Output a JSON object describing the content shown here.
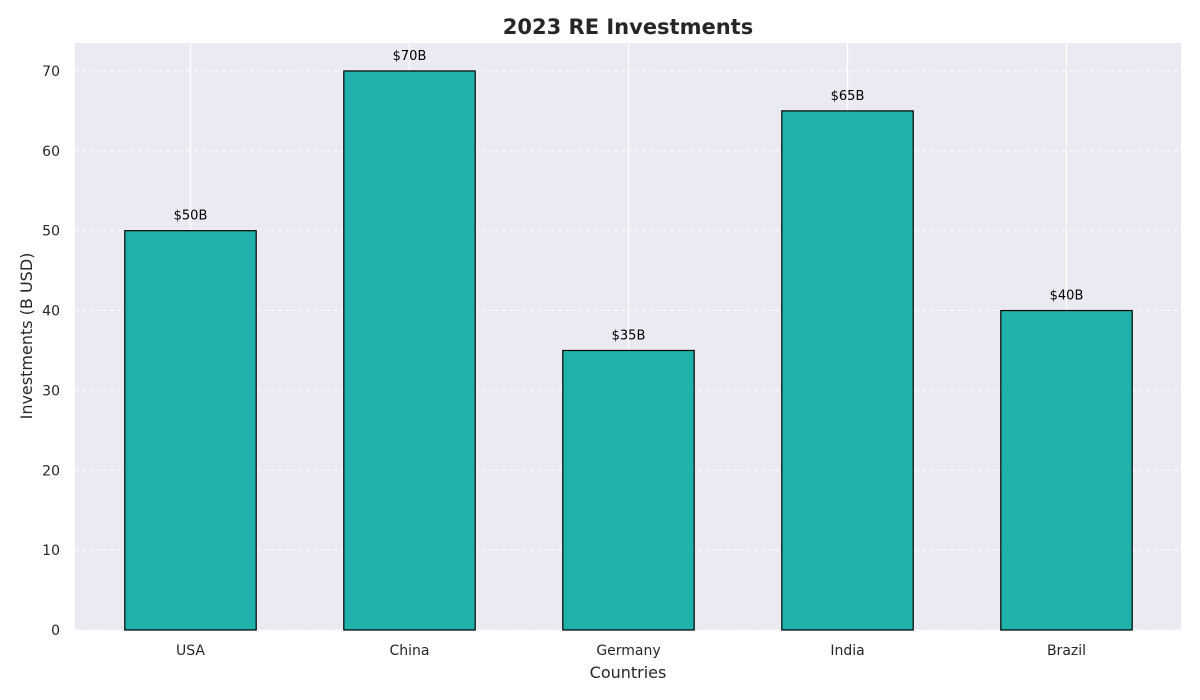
{
  "chart_data": {
    "type": "bar",
    "title": "2023 RE Investments",
    "xlabel": "Countries",
    "ylabel": "Investments (B USD)",
    "categories": [
      "USA",
      "China",
      "Germany",
      "India",
      "Brazil"
    ],
    "values": [
      50,
      70,
      35,
      65,
      40
    ],
    "value_labels": [
      "$50B",
      "$70B",
      "$35B",
      "$65B",
      "$40B"
    ],
    "ylim": [
      0,
      73.5
    ],
    "yticks": [
      0,
      10,
      20,
      30,
      40,
      50,
      60,
      70
    ],
    "grid": true,
    "colors": {
      "bar": "#20b2aa",
      "bar_edge": "#000000",
      "plot_background": "#eaeaf2",
      "grid": "#ffffff"
    }
  }
}
